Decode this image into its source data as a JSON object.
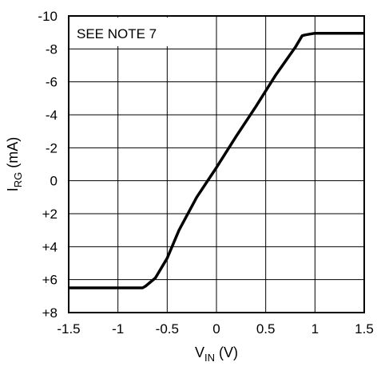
{
  "chart_data": {
    "type": "line",
    "title": "",
    "annotation": "SEE NOTE 7",
    "xlabel": {
      "main": "V",
      "sub": "IN",
      "unit": " (V)"
    },
    "ylabel": {
      "main": "I",
      "sub": "RG",
      "unit": " (mA)"
    },
    "xlim": [
      -1.5,
      1.5
    ],
    "ylim": [
      -10,
      8
    ],
    "y_inverted": true,
    "grid": true,
    "x_ticks": [
      {
        "value": -1.5,
        "label": "-1.5"
      },
      {
        "value": -1.0,
        "label": "-1"
      },
      {
        "value": -0.5,
        "label": "-0.5"
      },
      {
        "value": 0,
        "label": "0"
      },
      {
        "value": 0.5,
        "label": "0.5"
      },
      {
        "value": 1.0,
        "label": "1"
      },
      {
        "value": 1.5,
        "label": "1.5"
      }
    ],
    "y_ticks": [
      {
        "value": -10,
        "label": "-10"
      },
      {
        "value": -8,
        "label": "-8"
      },
      {
        "value": -6,
        "label": "-6"
      },
      {
        "value": -4,
        "label": "-4"
      },
      {
        "value": -2,
        "label": "-2"
      },
      {
        "value": 0,
        "label": "0"
      },
      {
        "value": 2,
        "label": "+2"
      },
      {
        "value": 4,
        "label": "+4"
      },
      {
        "value": 6,
        "label": "+6"
      },
      {
        "value": 8,
        "label": "+8"
      }
    ],
    "series": [
      {
        "color": "#000000",
        "x": [
          -1.5,
          -0.75,
          -0.72,
          -0.62,
          -0.5,
          -0.38,
          -0.2,
          0.0,
          0.2,
          0.4,
          0.6,
          0.8,
          0.87,
          0.9,
          0.95,
          1.0,
          1.5
        ],
        "y": [
          6.5,
          6.5,
          6.4,
          5.9,
          4.7,
          3.0,
          1.0,
          -0.8,
          -2.7,
          -4.5,
          -6.4,
          -8.1,
          -8.8,
          -8.85,
          -8.9,
          -8.95,
          -8.95
        ]
      }
    ]
  }
}
